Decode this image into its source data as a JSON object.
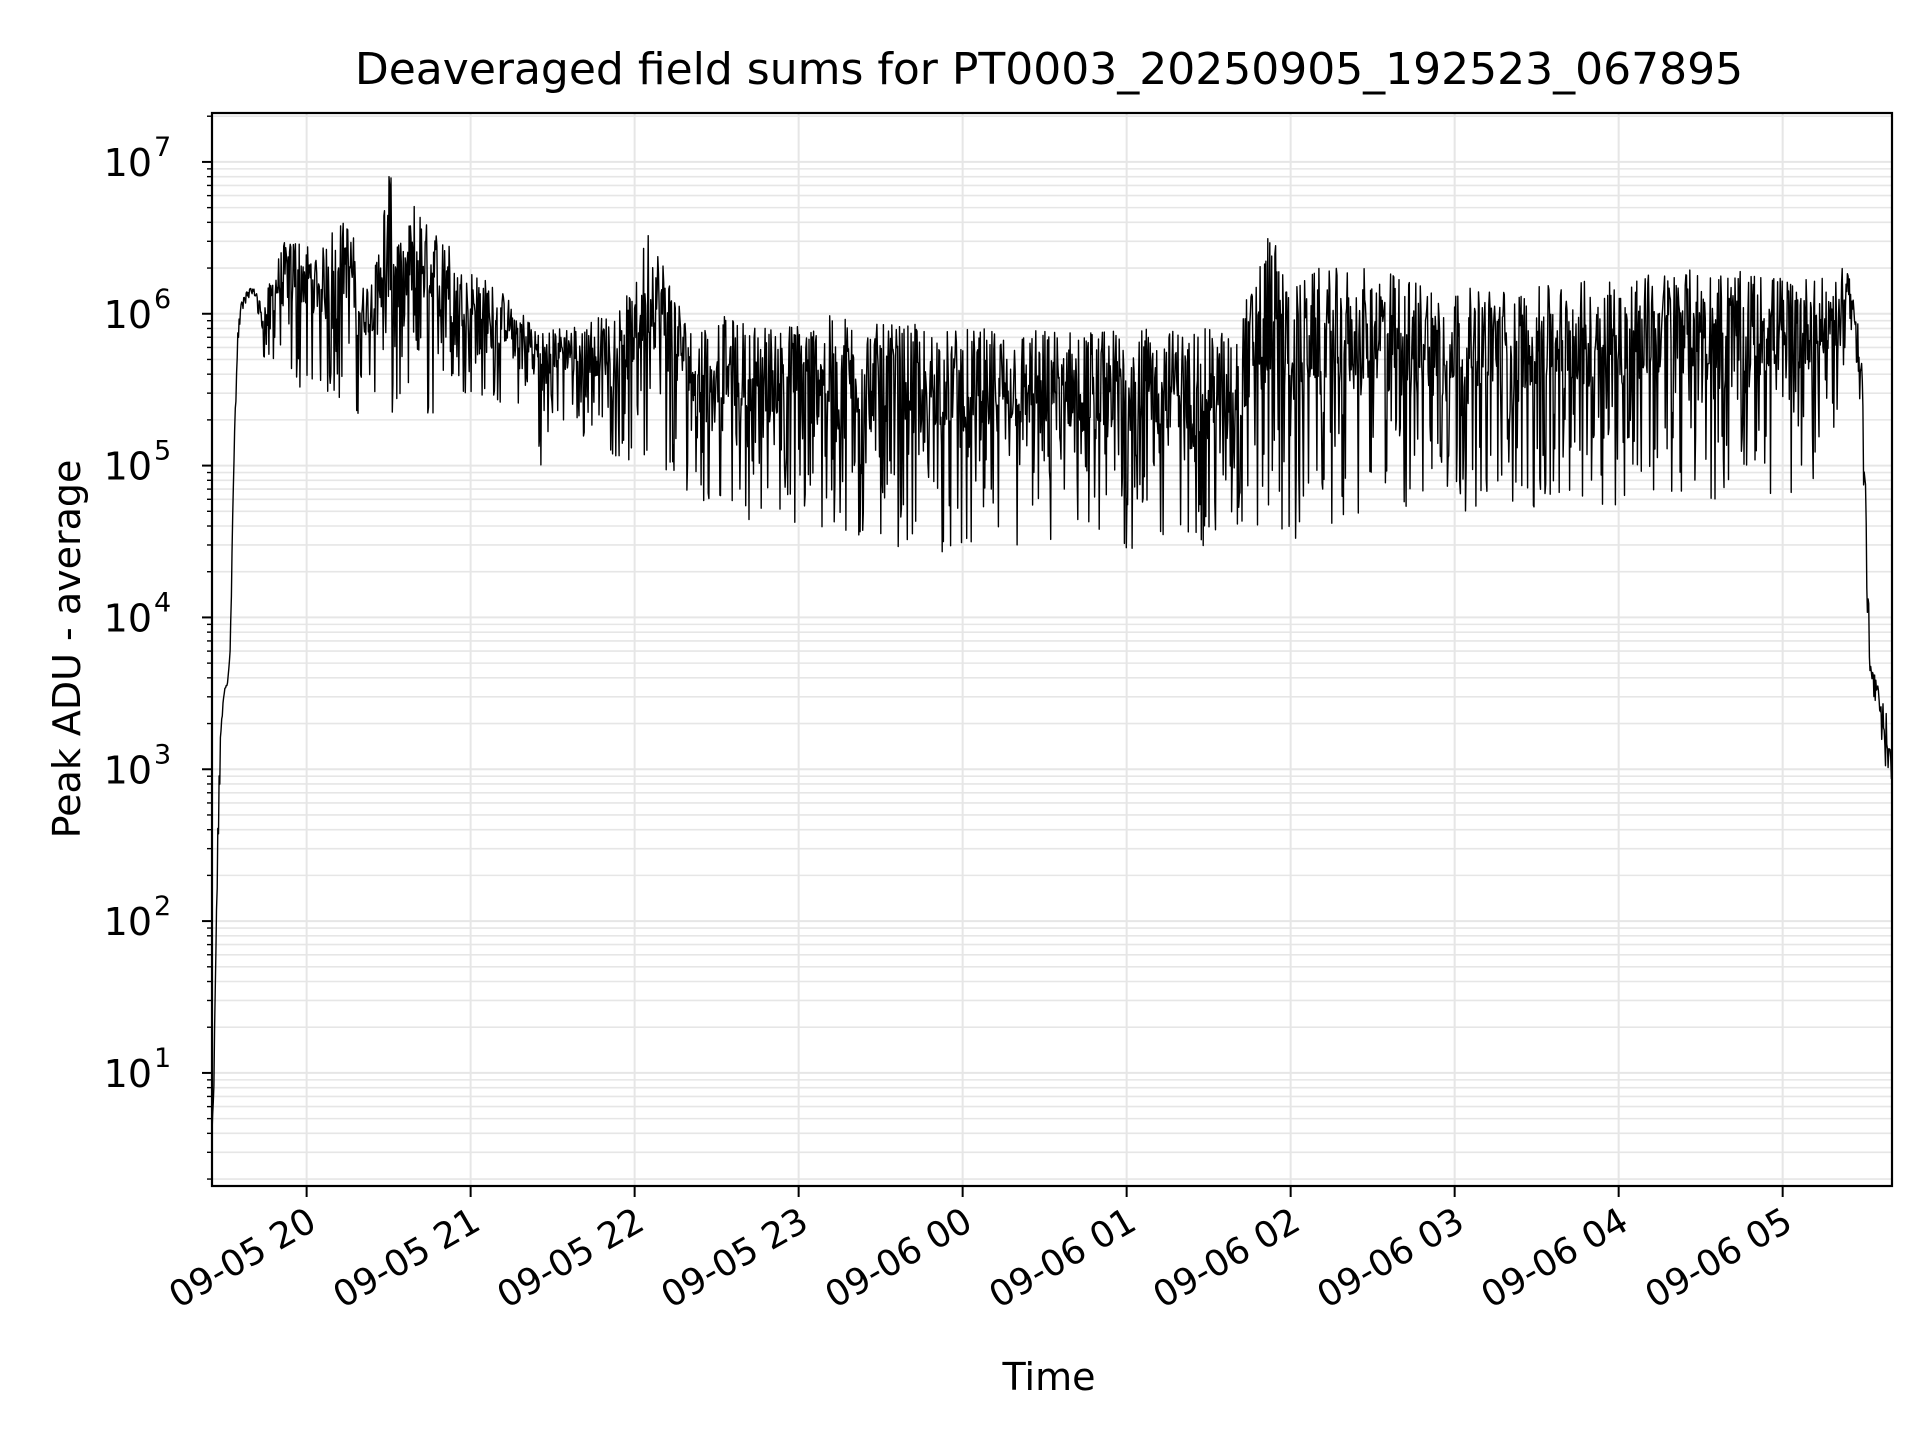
{
  "chart_data": {
    "type": "line",
    "title": "Deaveraged field sums for PT0003_20250905_192523_067895",
    "xlabel": "Time",
    "ylabel": "Peak ADU - average",
    "yscale": "log",
    "ylim": [
      1.8,
      21000000
    ],
    "xlim": [
      "2025-09-05 19:25:23",
      "2025-09-06 05:40:00"
    ],
    "grid": true,
    "line_color": "#000000",
    "grid_color": "#e6e6e6",
    "y_ticks": [
      {
        "value": 10,
        "base": "10",
        "exp": "1"
      },
      {
        "value": 100,
        "base": "10",
        "exp": "2"
      },
      {
        "value": 1000,
        "base": "10",
        "exp": "3"
      },
      {
        "value": 10000,
        "base": "10",
        "exp": "4"
      },
      {
        "value": 100000,
        "base": "10",
        "exp": "5"
      },
      {
        "value": 1000000,
        "base": "10",
        "exp": "6"
      },
      {
        "value": 10000000,
        "base": "10",
        "exp": "7"
      }
    ],
    "x_ticks": [
      {
        "time": "2025-09-05 20:00",
        "label": "09-05 20"
      },
      {
        "time": "2025-09-05 21:00",
        "label": "09-05 21"
      },
      {
        "time": "2025-09-05 22:00",
        "label": "09-05 22"
      },
      {
        "time": "2025-09-05 23:00",
        "label": "09-05 23"
      },
      {
        "time": "2025-09-06 00:00",
        "label": "09-06 00"
      },
      {
        "time": "2025-09-06 01:00",
        "label": "09-06 01"
      },
      {
        "time": "2025-09-06 02:00",
        "label": "09-06 02"
      },
      {
        "time": "2025-09-06 03:00",
        "label": "09-06 03"
      },
      {
        "time": "2025-09-06 04:00",
        "label": "09-06 04"
      },
      {
        "time": "2025-09-06 05:00",
        "label": "09-06 05"
      }
    ],
    "series": [
      {
        "x": [
          "2025-09-05 19:25:23",
          "2025-09-05 19:26:00",
          "2025-09-05 19:27:00",
          "2025-09-05 19:28:00",
          "2025-09-05 19:29:00",
          "2025-09-05 19:30:00",
          "2025-09-05 19:31:00",
          "2025-09-05 19:32:00",
          "2025-09-05 19:33:00",
          "2025-09-05 19:34:00",
          "2025-09-05 19:35:00",
          "2025-09-05 19:36:00",
          "2025-09-05 19:38:00",
          "2025-09-05 19:40:00",
          "2025-09-05 19:42:00",
          "2025-09-05 19:44:00",
          "2025-09-05 19:46:00",
          "2025-09-05 19:48:00",
          "2025-09-05 19:50:00",
          "2025-09-05 19:52:00",
          "2025-09-05 19:54:00",
          "2025-09-05 19:56:00",
          "2025-09-05 19:58:00",
          "2025-09-05 20:00:00",
          "2025-09-05 20:05:00",
          "2025-09-05 20:10:00",
          "2025-09-05 20:15:00",
          "2025-09-05 20:18:00",
          "2025-09-05 20:20:00",
          "2025-09-05 20:25:00",
          "2025-09-05 20:30:00",
          "2025-09-05 20:35:00",
          "2025-09-05 20:40:00",
          "2025-09-05 20:45:00",
          "2025-09-05 20:50:00",
          "2025-09-05 20:55:00",
          "2025-09-05 21:00:00",
          "2025-09-05 21:10:00",
          "2025-09-05 21:20:00",
          "2025-09-05 21:25:00",
          "2025-09-05 21:30:00",
          "2025-09-05 21:40:00",
          "2025-09-05 21:50:00",
          "2025-09-05 22:00:00",
          "2025-09-05 22:05:00",
          "2025-09-05 22:10:00",
          "2025-09-05 22:15:00",
          "2025-09-05 22:20:00",
          "2025-09-05 22:30:00",
          "2025-09-05 22:40:00",
          "2025-09-05 22:50:00",
          "2025-09-05 23:00:00",
          "2025-09-05 23:15:00",
          "2025-09-05 23:30:00",
          "2025-09-05 23:45:00",
          "2025-09-06 00:00:00",
          "2025-09-06 00:20:00",
          "2025-09-06 00:40:00",
          "2025-09-06 01:00:00",
          "2025-09-06 01:20:00",
          "2025-09-06 01:40:00",
          "2025-09-06 01:52:00",
          "2025-09-06 02:00:00",
          "2025-09-06 02:10:00",
          "2025-09-06 02:30:00",
          "2025-09-06 03:00:00",
          "2025-09-06 03:30:00",
          "2025-09-06 04:00:00",
          "2025-09-06 04:30:00",
          "2025-09-06 05:00:00",
          "2025-09-06 05:10:00",
          "2025-09-06 05:15:00",
          "2025-09-06 05:20:00",
          "2025-09-06 05:23:00",
          "2025-09-06 05:25:00",
          "2025-09-06 05:27:00",
          "2025-09-06 05:29:00",
          "2025-09-06 05:31:00",
          "2025-09-06 05:32:00",
          "2025-09-06 05:34:00",
          "2025-09-06 05:36:00",
          "2025-09-06 05:38:00",
          "2025-09-06 05:40:00"
        ],
        "lo": [
          4,
          5,
          60,
          500,
          2000,
          3200,
          3500,
          5000,
          40000,
          200000,
          600000,
          900000,
          1200000,
          1300000,
          1000000,
          500000,
          450000,
          450000,
          400000,
          380000,
          380000,
          350000,
          300000,
          300000,
          300000,
          250000,
          280000,
          200000,
          250000,
          260000,
          150000,
          180000,
          200000,
          190000,
          300000,
          250000,
          300000,
          250000,
          250000,
          90000,
          200000,
          150000,
          120000,
          100000,
          80000,
          60000,
          55000,
          70000,
          50000,
          45000,
          40000,
          35000,
          28000,
          30000,
          28000,
          25000,
          25000,
          25000,
          25000,
          28000,
          30000,
          28000,
          28000,
          40000,
          45000,
          50000,
          50000,
          55000,
          60000,
          60000,
          70000,
          100000,
          200000,
          600000,
          700000,
          400000,
          100000,
          10000,
          4000,
          2500,
          1500,
          800,
          500
        ],
        "hi": [
          4,
          8,
          150,
          1200,
          2500,
          3400,
          3700,
          6000,
          60000,
          300000,
          900000,
          1200000,
          1400000,
          1500000,
          1400000,
          1100000,
          1500000,
          2000000,
          2500000,
          3000000,
          3000000,
          3500000,
          3000000,
          3000000,
          2500000,
          4000000,
          4200000,
          3000000,
          1500000,
          2000000,
          10000000,
          2500000,
          6500000,
          3500000,
          4000000,
          2000000,
          2000000,
          1500000,
          1000000,
          900000,
          800000,
          900000,
          1000000,
          1500000,
          4000000,
          2500000,
          1500000,
          800000,
          1000000,
          900000,
          850000,
          900000,
          1000000,
          850000,
          850000,
          800000,
          800000,
          800000,
          800000,
          800000,
          800000,
          3800000,
          1500000,
          2000000,
          2000000,
          1500000,
          1500000,
          1800000,
          2000000,
          1800000,
          1800000,
          1700000,
          1600000,
          2500000,
          1500000,
          1300000,
          500000,
          30000,
          5000,
          4000,
          3000,
          2500,
          1000
        ]
      }
    ]
  }
}
